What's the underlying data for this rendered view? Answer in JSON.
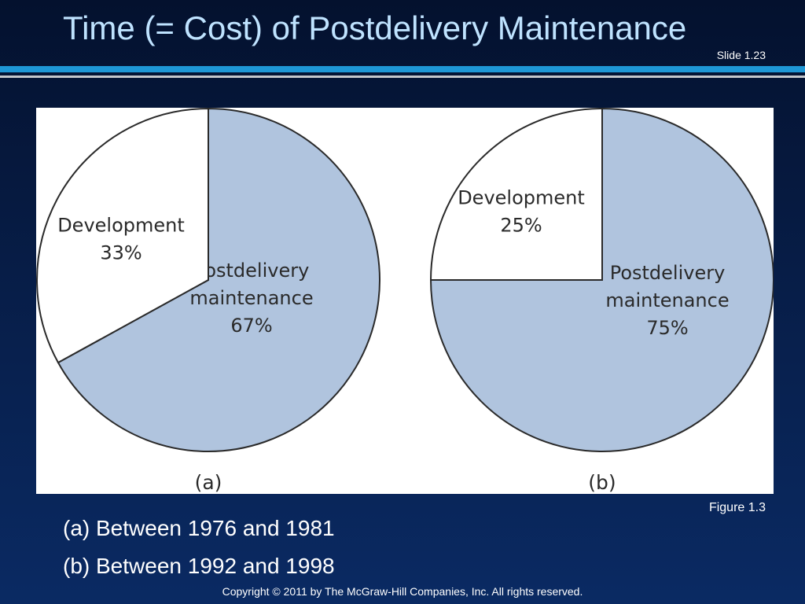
{
  "slide": {
    "title": "Time (= Cost) of Postdelivery Maintenance",
    "slide_number": "Slide 1.23",
    "figure_ref": "Figure 1.3",
    "captions": [
      "(a) Between 1976 and 1981",
      "(b) Between 1992 and 1998"
    ],
    "copyright": "Copyright © 2011 by The McGraw-Hill Companies, Inc.  All rights reserved."
  },
  "colors": {
    "maintenance_fill": "#b0c4de",
    "development_fill": "#ffffff",
    "outline": "#2a2a2a"
  },
  "chart_data": [
    {
      "type": "pie",
      "panel_label": "(a)",
      "slices": [
        {
          "name": "Postdelivery maintenance",
          "label_lines": [
            "Postdelivery",
            "maintenance",
            "67%"
          ],
          "value": 67,
          "color": "#b0c4de"
        },
        {
          "name": "Development",
          "label_lines": [
            "Development",
            "33%"
          ],
          "value": 33,
          "color": "#ffffff"
        }
      ]
    },
    {
      "type": "pie",
      "panel_label": "(b)",
      "slices": [
        {
          "name": "Postdelivery maintenance",
          "label_lines": [
            "Postdelivery",
            "maintenance",
            "75%"
          ],
          "value": 75,
          "color": "#b0c4de"
        },
        {
          "name": "Development",
          "label_lines": [
            "Development",
            "25%"
          ],
          "value": 25,
          "color": "#ffffff"
        }
      ]
    }
  ]
}
